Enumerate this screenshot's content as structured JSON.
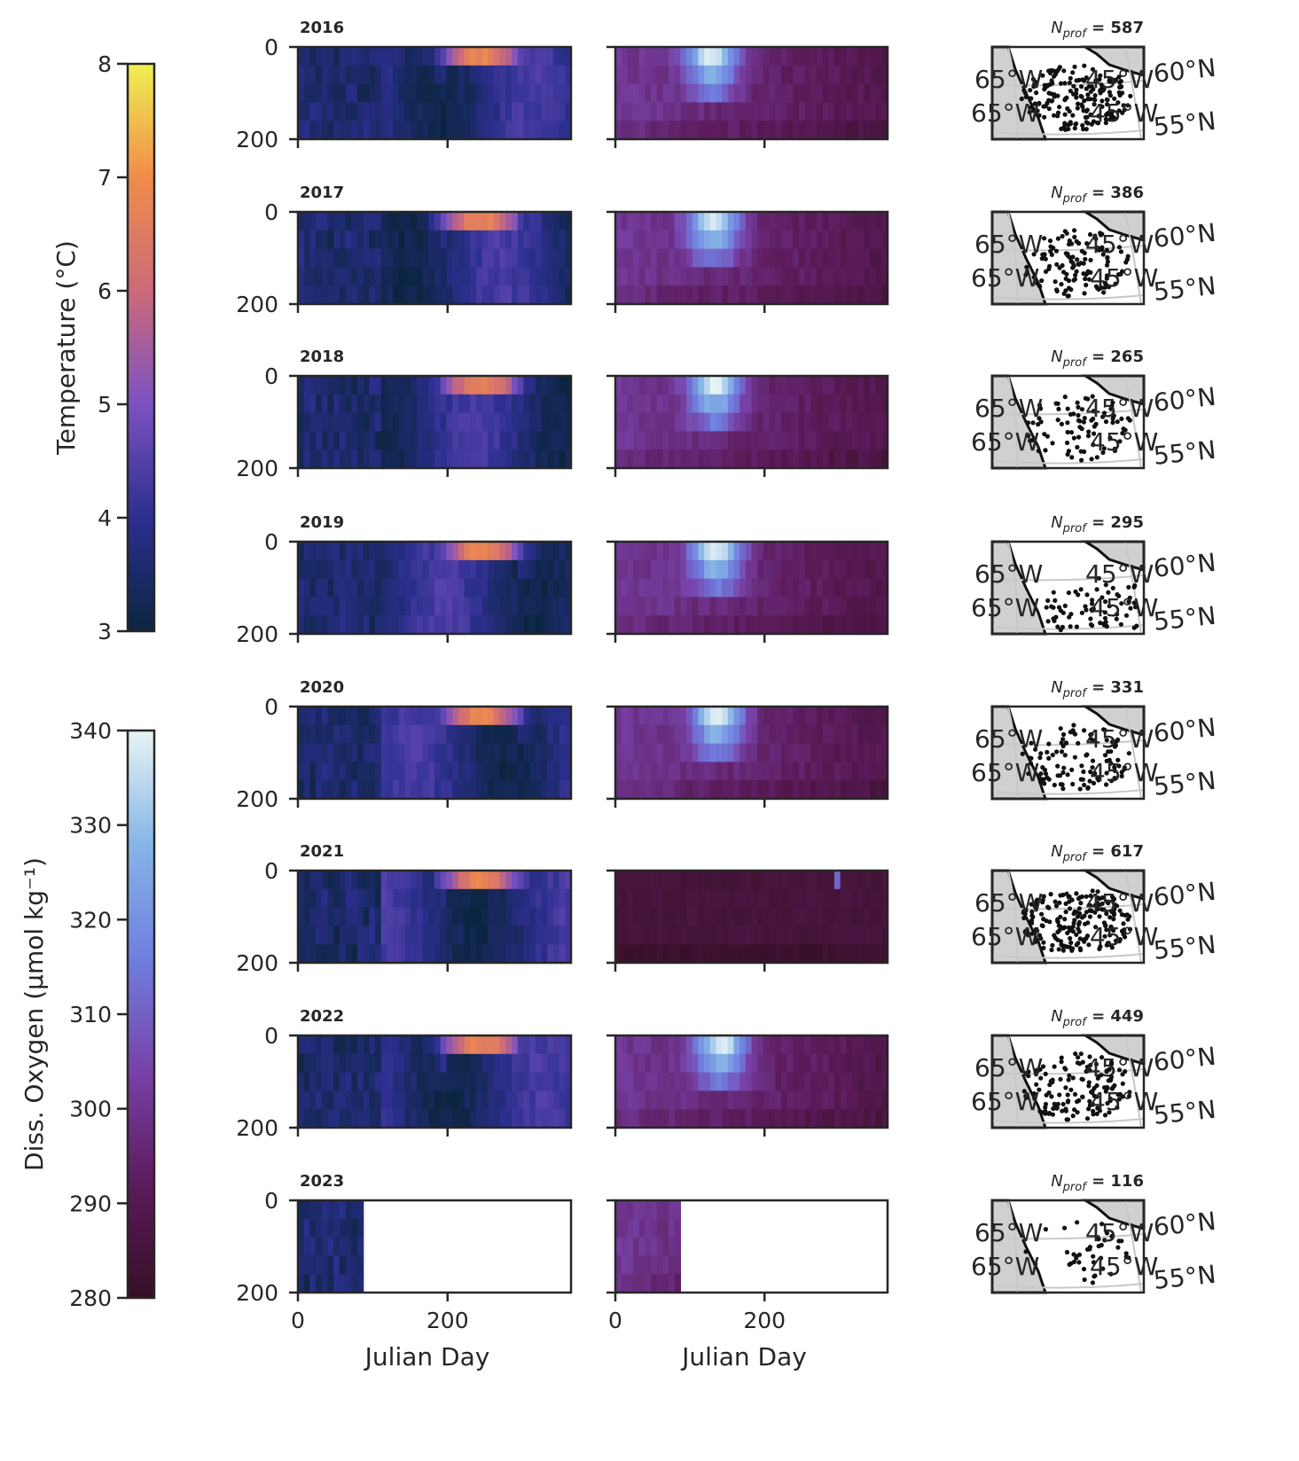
{
  "chart_data": {
    "type": "heatmap",
    "panels": {
      "temperature": {
        "xlabel": "Julian Day",
        "xlim": [
          0,
          365
        ],
        "xticks": [
          0,
          200
        ],
        "ylim": [
          200,
          0
        ],
        "yticks": [
          0,
          200
        ]
      },
      "oxygen": {
        "xlabel": "Julian Day",
        "xlim": [
          0,
          365
        ],
        "xticks": [
          0,
          200
        ],
        "ylim": [
          200,
          0
        ],
        "yticks": [
          0,
          200
        ]
      },
      "map": {
        "lon_labels": [
          "65°W",
          "45°W"
        ],
        "lat_labels": [
          "60°N",
          "55°N"
        ]
      }
    },
    "colorbars": [
      {
        "label": "Temperature (°C)",
        "min": 3,
        "max": 8,
        "ticks": [
          "3",
          "4",
          "5",
          "6",
          "7",
          "8"
        ],
        "colormap": "thermal",
        "colors": [
          "#0b2540",
          "#2c2f8f",
          "#7b52c2",
          "#cc6a7a",
          "#f08c4a",
          "#f0f050"
        ]
      },
      {
        "label": "Diss. Oxygen (µmol kg⁻¹)",
        "min": 280,
        "max": 340,
        "ticks": [
          "280",
          "290",
          "300",
          "310",
          "320",
          "330",
          "340"
        ],
        "colormap": "dense",
        "colors": [
          "#360f25",
          "#5c1b5b",
          "#7842a8",
          "#6f7fe0",
          "#87b5e6",
          "#e8f4f4"
        ]
      }
    ],
    "years": [
      {
        "year": "2016",
        "nprof_label": "N",
        "nprof_sub": "prof",
        "nprof_suffix": " = 587",
        "n_prof": 587,
        "data_end_day": 365
      },
      {
        "year": "2017",
        "nprof_label": "N",
        "nprof_sub": "prof",
        "nprof_suffix": " = 386",
        "n_prof": 386,
        "data_end_day": 365
      },
      {
        "year": "2018",
        "nprof_label": "N",
        "nprof_sub": "prof",
        "nprof_suffix": " = 265",
        "n_prof": 265,
        "data_end_day": 365
      },
      {
        "year": "2019",
        "nprof_label": "N",
        "nprof_sub": "prof",
        "nprof_suffix": " = 295",
        "n_prof": 295,
        "data_end_day": 365
      },
      {
        "year": "2020",
        "nprof_label": "N",
        "nprof_sub": "prof",
        "nprof_suffix": " = 331",
        "n_prof": 331,
        "data_end_day": 365
      },
      {
        "year": "2021",
        "nprof_label": "N",
        "nprof_sub": "prof",
        "nprof_suffix": " = 617",
        "n_prof": 617,
        "data_end_day": 365
      },
      {
        "year": "2022",
        "nprof_label": "N",
        "nprof_sub": "prof",
        "nprof_suffix": " = 449",
        "n_prof": 449,
        "data_end_day": 365
      },
      {
        "year": "2023",
        "nprof_label": "N",
        "nprof_sub": "prof",
        "nprof_suffix": " = 116",
        "n_prof": 116,
        "data_end_day": 85
      }
    ]
  }
}
